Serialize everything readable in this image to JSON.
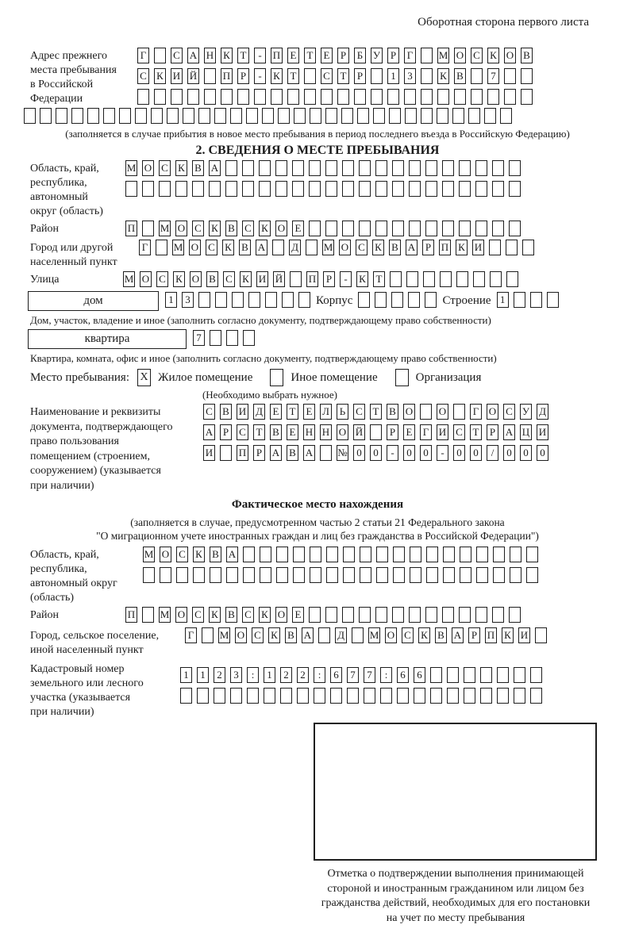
{
  "header": {
    "note": "Оборотная сторона первого листа"
  },
  "prev_address": {
    "label": "Адрес прежнего\nместа пребывания\nв Российской\nФедерации",
    "rows": [
      [
        "Г",
        "",
        "С",
        "А",
        "Н",
        "К",
        "Т",
        "-",
        "П",
        "Е",
        "Т",
        "Е",
        "Р",
        "Б",
        "У",
        "Р",
        "Г",
        "",
        "М",
        "О",
        "С",
        "К",
        "О",
        "В"
      ],
      [
        "С",
        "К",
        "И",
        "Й",
        "",
        "П",
        "Р",
        "-",
        "К",
        "Т",
        "",
        "С",
        "Т",
        "Р",
        "",
        "1",
        "3",
        "",
        "К",
        "В",
        "",
        "7",
        "",
        ""
      ],
      [
        "",
        "",
        "",
        "",
        "",
        "",
        "",
        "",
        "",
        "",
        "",
        "",
        "",
        "",
        "",
        "",
        "",
        "",
        "",
        "",
        "",
        "",
        "",
        ""
      ],
      [
        "",
        "",
        "",
        "",
        "",
        "",
        "",
        "",
        "",
        "",
        "",
        "",
        "",
        "",
        "",
        "",
        "",
        "",
        "",
        "",
        "",
        "",
        "",
        "",
        "",
        "",
        "",
        "",
        "",
        "",
        ""
      ]
    ],
    "note": "(заполняется в случае прибытия в новое место пребывания в период последнего въезда в Российскую Федерацию)"
  },
  "section2": {
    "title": "2. СВЕДЕНИЯ О МЕСТЕ ПРЕБЫВАНИЯ",
    "region": {
      "label": "Область, край,\nреспублика,\nавтономный\nокруг (область)",
      "rows": [
        [
          "М",
          "О",
          "С",
          "К",
          "В",
          "А",
          "",
          "",
          "",
          "",
          "",
          "",
          "",
          "",
          "",
          "",
          "",
          "",
          "",
          "",
          "",
          "",
          "",
          ""
        ],
        [
          "",
          "",
          "",
          "",
          "",
          "",
          "",
          "",
          "",
          "",
          "",
          "",
          "",
          "",
          "",
          "",
          "",
          "",
          "",
          "",
          "",
          "",
          "",
          ""
        ]
      ]
    },
    "district": {
      "label": "Район",
      "cells": [
        "П",
        "",
        "М",
        "О",
        "С",
        "К",
        "В",
        "С",
        "К",
        "О",
        "Е",
        "",
        "",
        "",
        "",
        "",
        "",
        "",
        "",
        "",
        "",
        "",
        "",
        ""
      ]
    },
    "city": {
      "label": "Город или другой\nнаселенный пункт",
      "cells": [
        "Г",
        "",
        "М",
        "О",
        "С",
        "К",
        "В",
        "А",
        "",
        "Д",
        "",
        "М",
        "О",
        "С",
        "К",
        "В",
        "А",
        "Р",
        "П",
        "К",
        "И",
        "",
        "",
        ""
      ]
    },
    "street": {
      "label": "Улица",
      "cells": [
        "М",
        "О",
        "С",
        "К",
        "О",
        "В",
        "С",
        "К",
        "И",
        "Й",
        "",
        "П",
        "Р",
        "-",
        "К",
        "Т",
        "",
        "",
        "",
        "",
        "",
        "",
        "",
        ""
      ]
    },
    "house": {
      "box_label": "дом",
      "cells": [
        "1",
        "3",
        "",
        "",
        "",
        "",
        "",
        "",
        ""
      ],
      "korpus_label": "Корпус",
      "korpus_cells": [
        "",
        "",
        "",
        "",
        ""
      ],
      "stroenie_label": "Строение",
      "stroenie_cells": [
        "1",
        "",
        "",
        ""
      ]
    },
    "house_note": "Дом, участок, владение и иное (заполнить согласно документу, подтверждающему право собственности)",
    "apartment": {
      "box_label": "квартира",
      "cells": [
        "7",
        "",
        "",
        ""
      ]
    },
    "apartment_note": "Квартира, комната, офис и иное (заполнить согласно документу, подтверждающему право собственности)",
    "stay": {
      "label": "Место пребывания:",
      "options": [
        {
          "label": "Жилое помещение",
          "mark": "X"
        },
        {
          "label": "Иное помещение",
          "mark": ""
        },
        {
          "label": "Организация",
          "mark": ""
        }
      ],
      "note": "(Необходимо выбрать нужное)"
    },
    "document": {
      "label": "Наименование и реквизиты\nдокумента, подтверждающего\nправо пользования\nпомещением (строением,\nсооружением) (указывается\nпри наличии)",
      "rows": [
        [
          "С",
          "В",
          "И",
          "Д",
          "Е",
          "Т",
          "Е",
          "Л",
          "Ь",
          "С",
          "Т",
          "В",
          "О",
          "",
          "О",
          "",
          "Г",
          "О",
          "С",
          "У",
          "Д"
        ],
        [
          "А",
          "Р",
          "С",
          "Т",
          "В",
          "Е",
          "Н",
          "Н",
          "О",
          "Й",
          "",
          "Р",
          "Е",
          "Г",
          "И",
          "С",
          "Т",
          "Р",
          "А",
          "Ц",
          "И"
        ],
        [
          "И",
          "",
          "П",
          "Р",
          "А",
          "В",
          "А",
          "",
          "№",
          "0",
          "0",
          "-",
          "0",
          "0",
          "-",
          "0",
          "0",
          "/",
          "0",
          "0",
          "0"
        ]
      ]
    }
  },
  "actual_location": {
    "title": "Фактическое место нахождения",
    "note1": "(заполняется в случае, предусмотренном частью 2 статьи 21 Федерального закона",
    "note2": "\"О миграционном учете иностранных граждан и лиц без гражданства в Российской Федерации\")",
    "region": {
      "label": "Область, край,\nреспублика,\nавтономный округ\n(область)",
      "rows": [
        [
          "М",
          "О",
          "С",
          "К",
          "В",
          "А",
          "",
          "",
          "",
          "",
          "",
          "",
          "",
          "",
          "",
          "",
          "",
          "",
          "",
          "",
          "",
          "",
          "",
          ""
        ],
        [
          "",
          "",
          "",
          "",
          "",
          "",
          "",
          "",
          "",
          "",
          "",
          "",
          "",
          "",
          "",
          "",
          "",
          "",
          "",
          "",
          "",
          "",
          "",
          ""
        ]
      ]
    },
    "district": {
      "label": "Район",
      "cells": [
        "П",
        "",
        "М",
        "О",
        "С",
        "К",
        "В",
        "С",
        "К",
        "О",
        "Е",
        "",
        "",
        "",
        "",
        "",
        "",
        "",
        "",
        "",
        "",
        "",
        "",
        ""
      ]
    },
    "city": {
      "label": "Город, сельское поселение,\nиной населенный пункт",
      "cells": [
        "Г",
        "",
        "М",
        "О",
        "С",
        "К",
        "В",
        "А",
        "",
        "Д",
        "",
        "М",
        "О",
        "С",
        "К",
        "В",
        "А",
        "Р",
        "П",
        "К",
        "И",
        ""
      ]
    },
    "cadastre": {
      "label": "Кадастровый номер\nземельного или лесного\nучастка (указывается\nпри наличии)",
      "rows": [
        [
          "1",
          "1",
          "2",
          "3",
          ":",
          "1",
          "2",
          "2",
          ":",
          "6",
          "7",
          "7",
          ":",
          "6",
          "6",
          "",
          "",
          "",
          "",
          "",
          "",
          ""
        ],
        [
          "",
          "",
          "",
          "",
          "",
          "",
          "",
          "",
          "",
          "",
          "",
          "",
          "",
          "",
          "",
          "",
          "",
          "",
          "",
          "",
          "",
          ""
        ]
      ]
    }
  },
  "stamp": {
    "caption": "Отметка о подтверждении выполнения принимающей\nстороной и иностранным гражданином или лицом без\nгражданства действий, необходимых для его постановки\nна учет по месту пребывания"
  }
}
